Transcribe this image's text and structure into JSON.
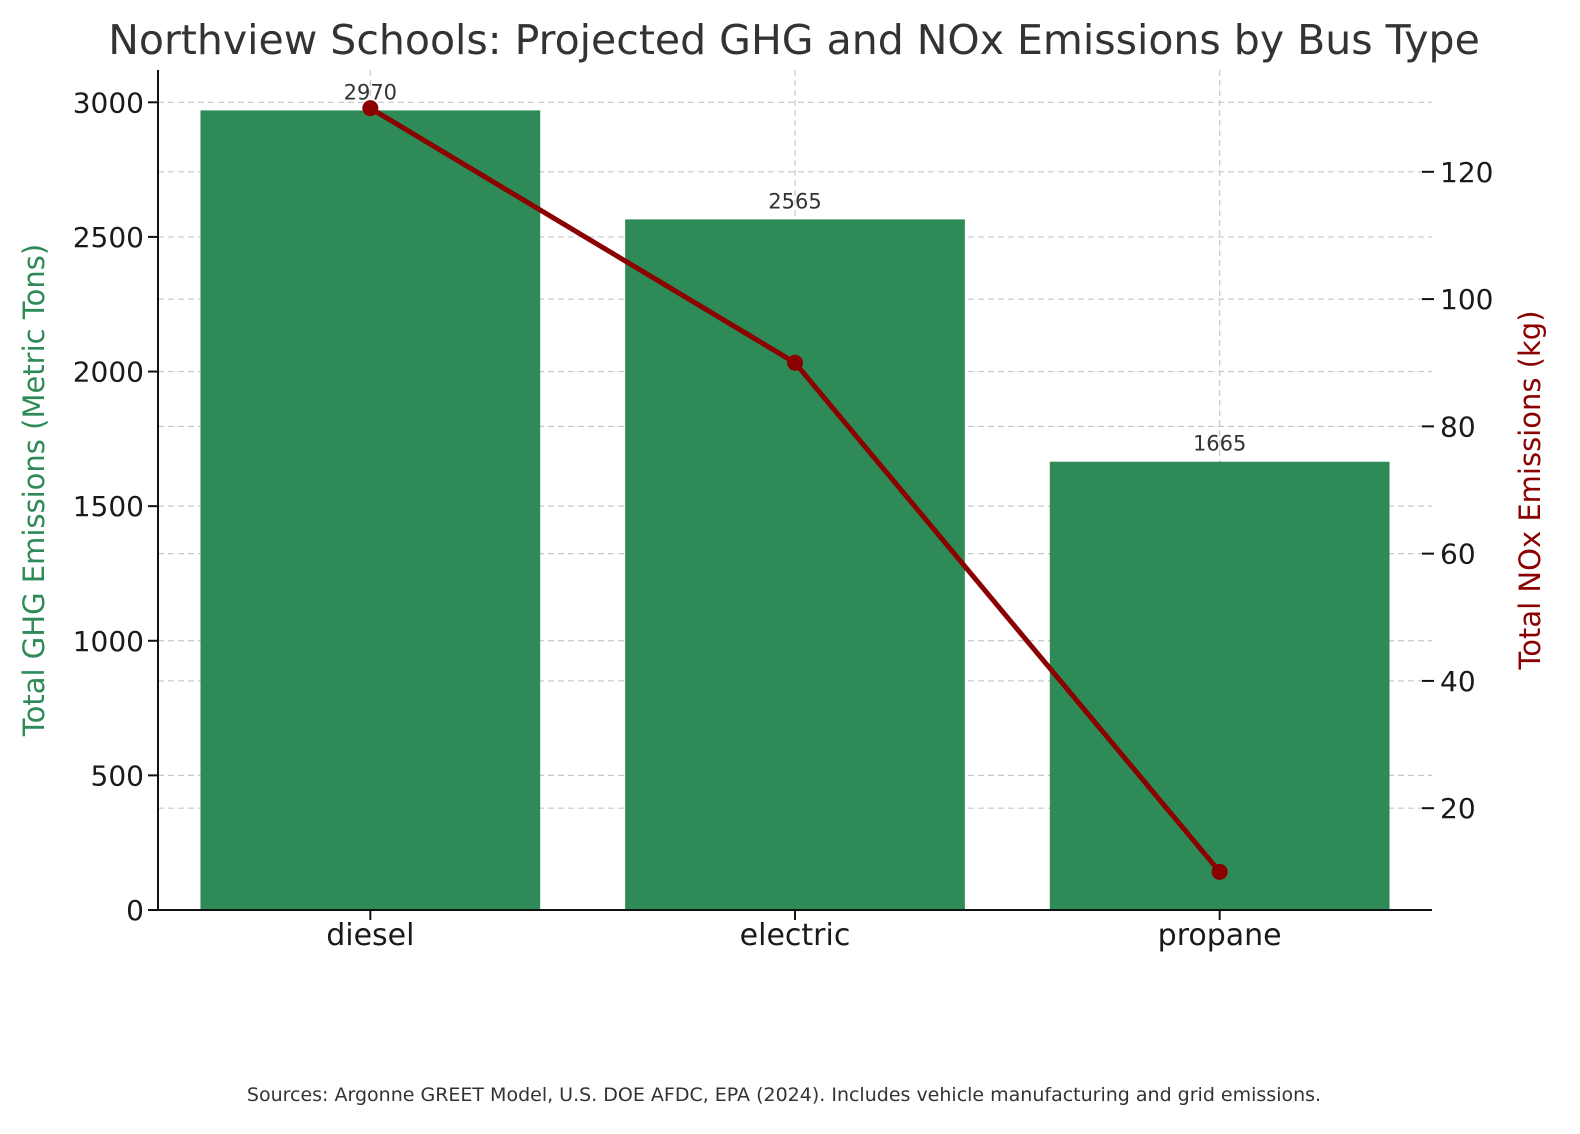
{
  "chart_data": {
    "type": "bar+line",
    "title": "Northview Schools: Projected GHG and NOx Emissions by Bus Type",
    "categories": [
      "diesel",
      "electric",
      "propane"
    ],
    "series": [
      {
        "name": "Total GHG Emissions (Metric Tons)",
        "type": "bar",
        "axis": "left",
        "values": [
          2970,
          2565,
          1665
        ],
        "data_labels": [
          "2970",
          "2565",
          "1665"
        ],
        "color": "#2e8b57"
      },
      {
        "name": "Total NOx Emissions (kg)",
        "type": "line",
        "axis": "right",
        "values": [
          130,
          90,
          10
        ],
        "color": "#8b0000"
      }
    ],
    "y_left": {
      "label": "Total GHG Emissions (Metric Tons)",
      "ylim": [
        0,
        3120
      ],
      "ticks": [
        0,
        500,
        1000,
        1500,
        2000,
        2500,
        3000
      ],
      "color": "#2e8b57"
    },
    "y_right": {
      "label": "Total NOx Emissions (kg)",
      "ylim": [
        4,
        136
      ],
      "ticks": [
        20,
        40,
        60,
        80,
        100,
        120
      ],
      "color": "#8b0000"
    },
    "grid": true,
    "legend": "none",
    "footnote": "Sources: Argonne GREET Model, U.S. DOE AFDC, EPA (2024). Includes vehicle manufacturing and grid emissions."
  }
}
